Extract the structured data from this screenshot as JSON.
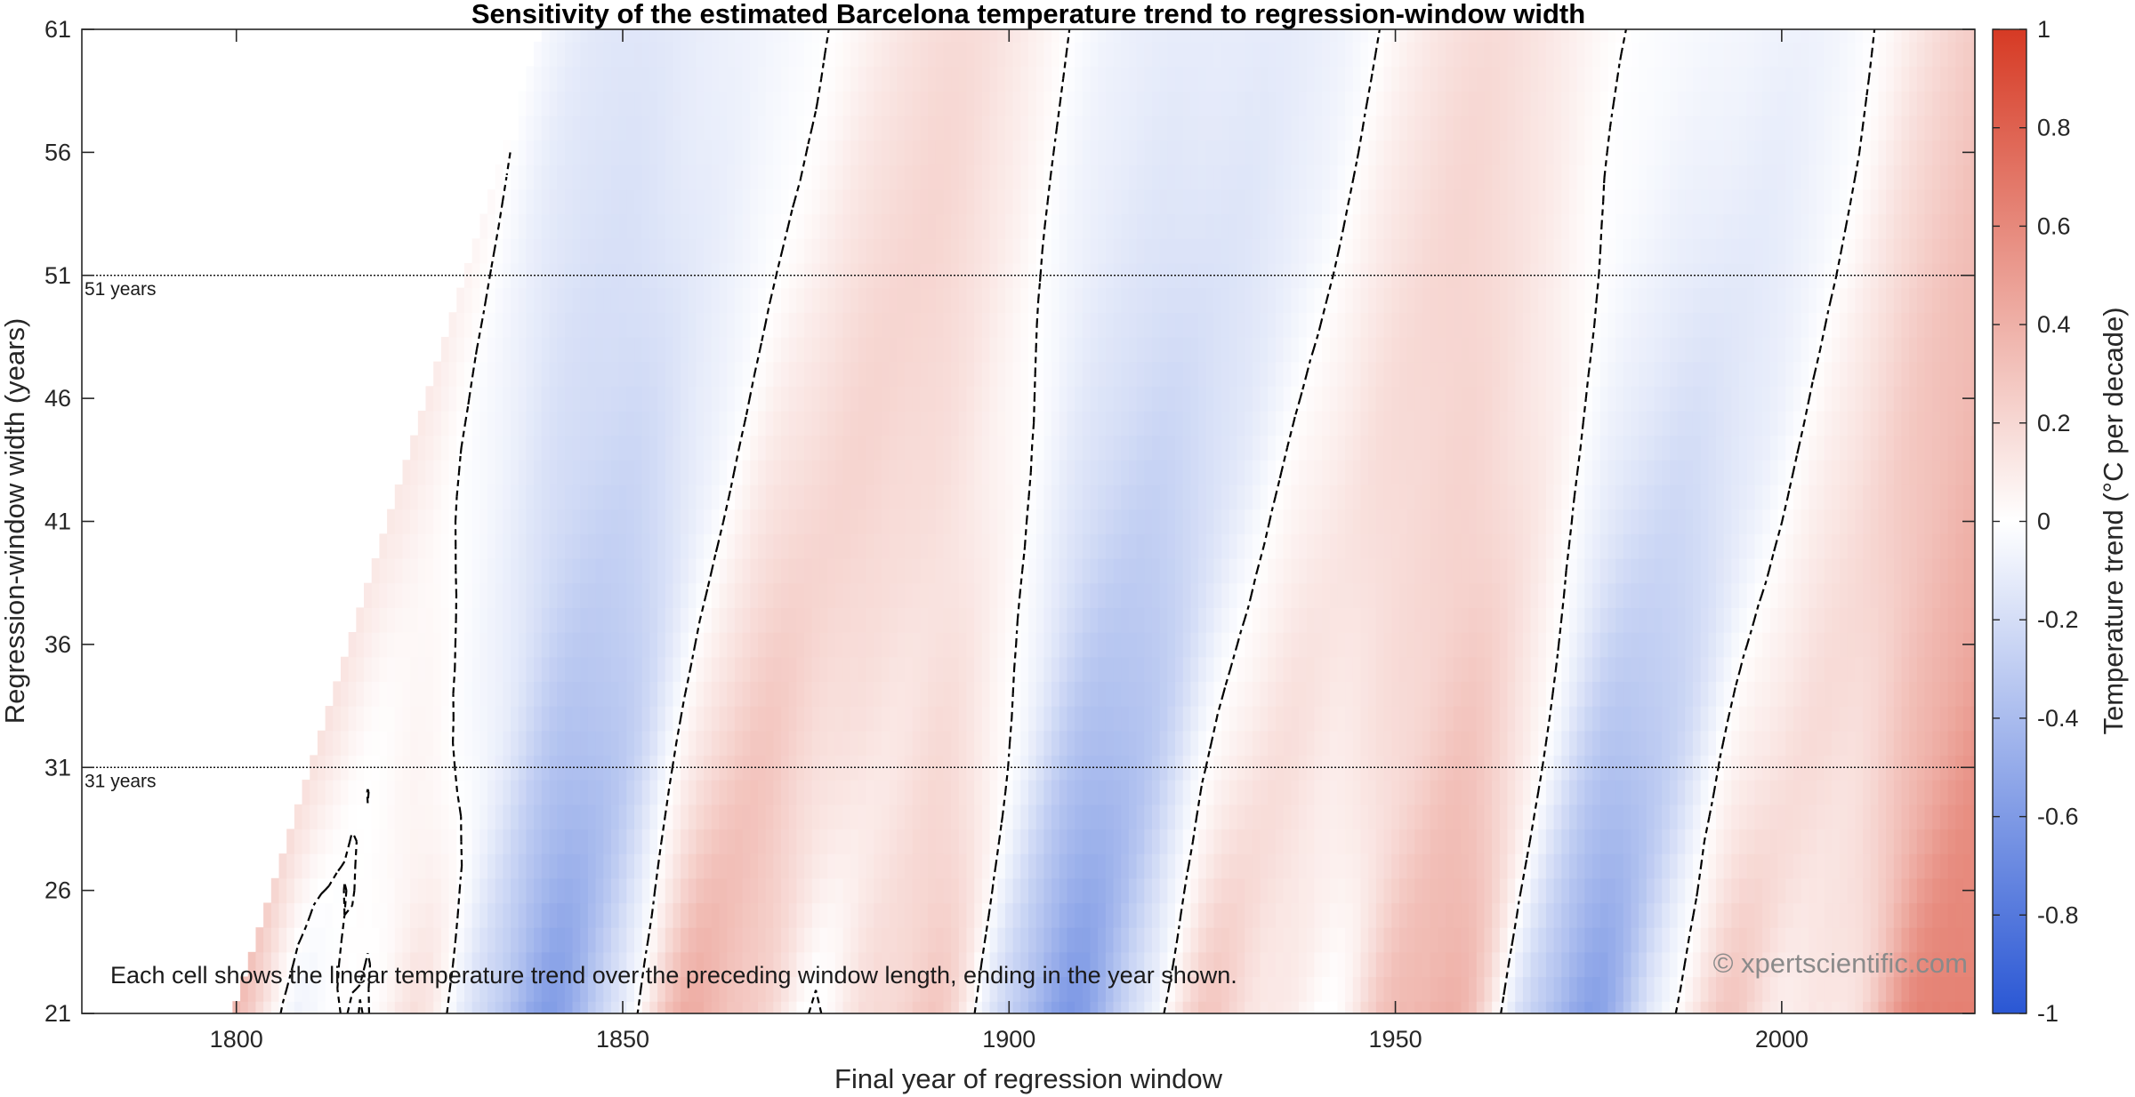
{
  "chart_data": {
    "type": "heatmap",
    "title": "Sensitivity of the estimated Barcelona temperature trend to regression-window width",
    "xlabel": "Final year of regression window",
    "ylabel": "Regression-window width (years)",
    "xlim": [
      1780,
      2025
    ],
    "ylim": [
      21,
      61
    ],
    "x_ticks": [
      1800,
      1850,
      1900,
      1950,
      2000
    ],
    "y_ticks": [
      21,
      26,
      31,
      36,
      41,
      46,
      51,
      56,
      61
    ],
    "first_data_year": 1780,
    "colorbar": {
      "label": "Temperature trend (°C per decade)",
      "range": [
        -1,
        1
      ],
      "ticks": [
        -1,
        -0.8,
        -0.6,
        -0.4,
        -0.2,
        0,
        0.2,
        0.4,
        0.6,
        0.8,
        1
      ],
      "colors": [
        "#2a57d4",
        "#ffffff",
        "#d63a24"
      ]
    },
    "contour_level": 0,
    "reference_lines": [
      {
        "width": 51,
        "label": "51 years"
      },
      {
        "width": 31,
        "label": "31 years"
      }
    ],
    "annotation": "Each cell shows the linear temperature trend over the preceding window length, ending in the year shown.",
    "credit": "© xpertscientific.com"
  }
}
